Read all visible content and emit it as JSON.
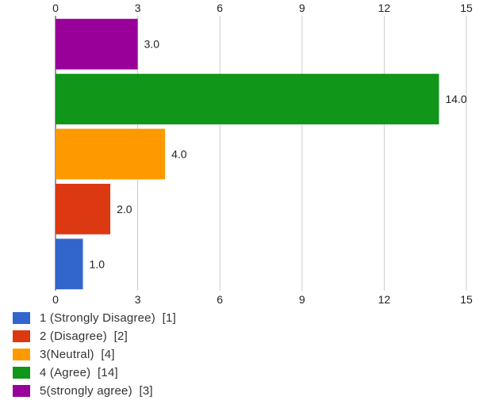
{
  "chart_data": {
    "type": "bar",
    "orientation": "horizontal",
    "categories": [
      "5(strongly agree)",
      "4 (Agree)",
      "3(Neutral)",
      "2 (Disagree)",
      "1 (Strongly Disagree)"
    ],
    "values": [
      3,
      14,
      4,
      2,
      1
    ],
    "data_labels": [
      "3.0",
      "14.0",
      "4.0",
      "2.0",
      "1.0"
    ],
    "colors": [
      "#990099",
      "#109618",
      "#ff9900",
      "#dc3912",
      "#3366cc"
    ],
    "xlim": [
      0,
      15
    ],
    "xticks": [
      "0",
      "3",
      "6",
      "9",
      "12",
      "15"
    ],
    "grid": true,
    "axes_ticks_top_and_bottom": true,
    "legend_position": "bottom",
    "legend": [
      {
        "label": "1 (Strongly Disagree)  [1]",
        "color": "#3366cc"
      },
      {
        "label": "2 (Disagree)  [2]",
        "color": "#dc3912"
      },
      {
        "label": "3(Neutral)  [4]",
        "color": "#ff9900"
      },
      {
        "label": "4 (Agree)  [14]",
        "color": "#109618"
      },
      {
        "label": "5(strongly agree)  [3]",
        "color": "#990099"
      }
    ]
  }
}
